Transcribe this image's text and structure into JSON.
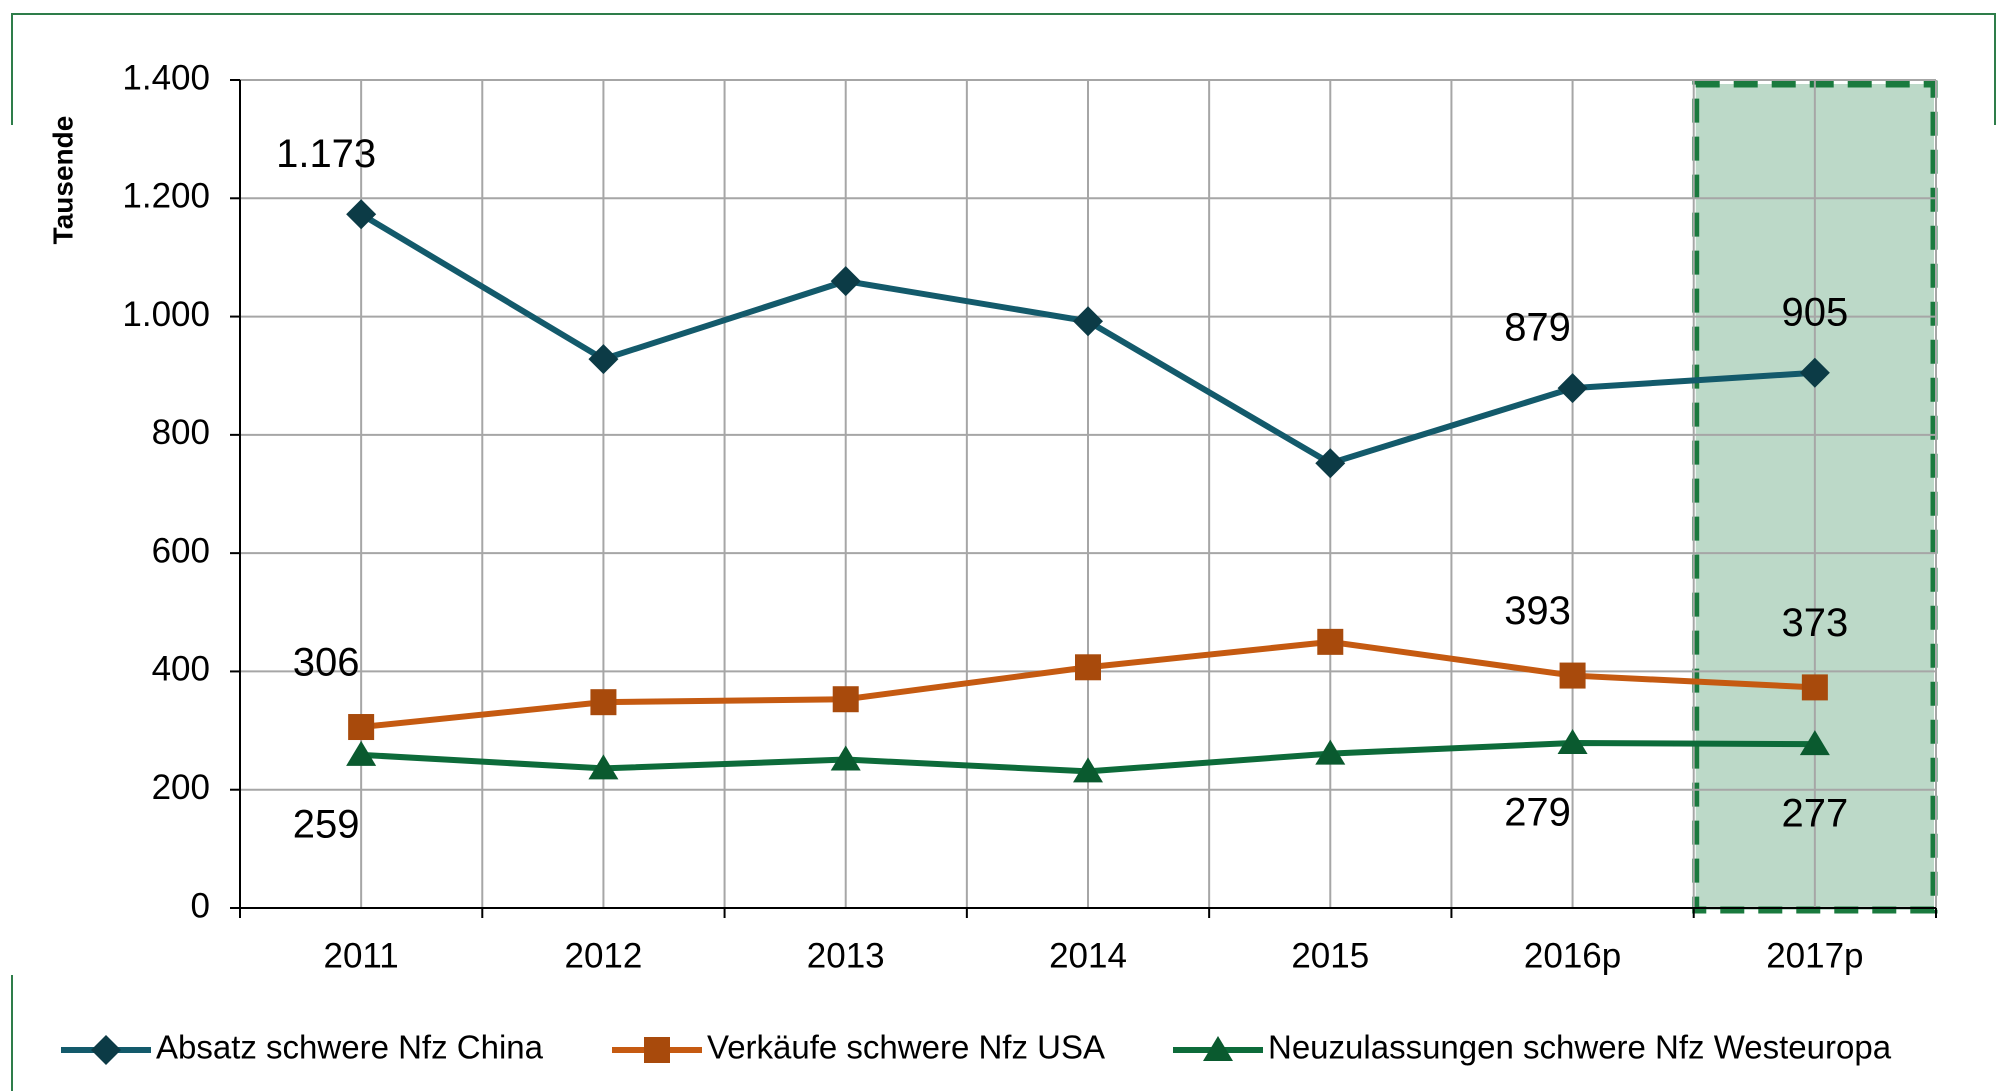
{
  "chart_data": {
    "type": "line",
    "y_label": "Tausende",
    "categories": [
      "2011",
      "2012",
      "2013",
      "2014",
      "2015",
      "2016p",
      "2017p"
    ],
    "series": [
      {
        "name": "Absatz schwere Nfz China",
        "color": "#135a6b",
        "marker": "diamond",
        "values": [
          1173,
          928,
          1060,
          992,
          752,
          879,
          905
        ],
        "value_labels": [
          "1.173",
          null,
          null,
          null,
          null,
          "879",
          "905"
        ]
      },
      {
        "name": "Verkäufe schwere Nfz USA",
        "color": "#c55a11",
        "marker": "square",
        "values": [
          306,
          348,
          353,
          407,
          450,
          393,
          373
        ],
        "value_labels": [
          "306",
          null,
          null,
          null,
          null,
          "393",
          "373"
        ]
      },
      {
        "name": "Neuzulassungen schwere Nfz Westeuropa",
        "color": "#0d6b3a",
        "marker": "triangle",
        "values": [
          259,
          236,
          251,
          231,
          261,
          279,
          277
        ],
        "value_labels": [
          "259",
          null,
          null,
          null,
          null,
          "279",
          "277"
        ]
      }
    ],
    "ylim": [
      0,
      1400
    ],
    "yticks": [
      0,
      200,
      400,
      600,
      800,
      {
        "value": 1000,
        "label": "1.000"
      },
      {
        "value": 1200,
        "label": "1.200"
      },
      {
        "value": 1400,
        "label": "1.400"
      }
    ],
    "grid": true,
    "legend": "bottom"
  }
}
